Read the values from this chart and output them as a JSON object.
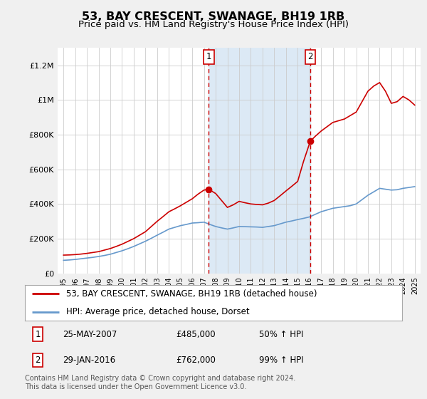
{
  "title": "53, BAY CRESCENT, SWANAGE, BH19 1RB",
  "subtitle": "Price paid vs. HM Land Registry's House Price Index (HPI)",
  "title_fontsize": 11.5,
  "subtitle_fontsize": 9.5,
  "ylim": [
    0,
    1300000
  ],
  "yticks": [
    0,
    200000,
    400000,
    600000,
    800000,
    1000000,
    1200000
  ],
  "ytick_labels": [
    "£0",
    "£200K",
    "£400K",
    "£600K",
    "£800K",
    "£1M",
    "£1.2M"
  ],
  "xlim_start": 1994.5,
  "xlim_end": 2025.5,
  "xtick_years": [
    1995,
    1996,
    1997,
    1998,
    1999,
    2000,
    2001,
    2002,
    2003,
    2004,
    2005,
    2006,
    2007,
    2008,
    2009,
    2010,
    2011,
    2012,
    2013,
    2014,
    2015,
    2016,
    2017,
    2018,
    2019,
    2020,
    2021,
    2022,
    2023,
    2024,
    2025
  ],
  "sale1_x": 2007.4,
  "sale1_y": 485000,
  "sale1_label": "1",
  "sale2_x": 2016.08,
  "sale2_y": 762000,
  "sale2_label": "2",
  "shade_color": "#dce9f5",
  "sale_line_color": "#cc0000",
  "legend_line1": "53, BAY CRESCENT, SWANAGE, BH19 1RB (detached house)",
  "legend_line2": "HPI: Average price, detached house, Dorset",
  "red_line_color": "#cc0000",
  "blue_line_color": "#6699cc",
  "marker_color": "#cc0000",
  "footnote": "Contains HM Land Registry data © Crown copyright and database right 2024.\nThis data is licensed under the Open Government Licence v3.0.",
  "hpi_years": [
    1995,
    1995.5,
    1996,
    1996.5,
    1997,
    1997.5,
    1998,
    1998.5,
    1999,
    1999.5,
    2000,
    2000.5,
    2001,
    2001.5,
    2002,
    2002.5,
    2003,
    2003.5,
    2004,
    2004.5,
    2005,
    2005.5,
    2006,
    2006.5,
    2007,
    2007.5,
    2008,
    2008.5,
    2009,
    2009.5,
    2010,
    2010.5,
    2011,
    2011.5,
    2012,
    2012.5,
    2013,
    2013.5,
    2014,
    2014.5,
    2015,
    2015.5,
    2016,
    2016.5,
    2017,
    2017.5,
    2018,
    2018.5,
    2019,
    2019.5,
    2020,
    2020.5,
    2021,
    2021.5,
    2022,
    2022.5,
    2023,
    2023.5,
    2024,
    2024.5,
    2025
  ],
  "hpi_values": [
    75000,
    77000,
    80000,
    84000,
    88000,
    92000,
    97000,
    103000,
    110000,
    120000,
    130000,
    142000,
    155000,
    170000,
    185000,
    202000,
    220000,
    237000,
    255000,
    265000,
    275000,
    282000,
    290000,
    292000,
    295000,
    282000,
    270000,
    262000,
    255000,
    262000,
    270000,
    269000,
    268000,
    267000,
    265000,
    270000,
    275000,
    285000,
    295000,
    302000,
    310000,
    317000,
    325000,
    340000,
    355000,
    365000,
    375000,
    380000,
    385000,
    390000,
    400000,
    425000,
    450000,
    470000,
    490000,
    485000,
    480000,
    482000,
    490000,
    495000,
    500000
  ],
  "prop_years": [
    1995,
    1995.5,
    1996,
    1996.5,
    1997,
    1997.5,
    1998,
    1998.5,
    1999,
    1999.5,
    2000,
    2000.5,
    2001,
    2001.5,
    2002,
    2002.5,
    2003,
    2003.5,
    2004,
    2004.5,
    2005,
    2005.5,
    2006,
    2006.5,
    2007,
    2007.4,
    2008,
    2008.5,
    2009,
    2009.5,
    2010,
    2010.5,
    2011,
    2011.5,
    2012,
    2012.5,
    2013,
    2013.5,
    2014,
    2014.5,
    2015,
    2015.5,
    2016.08,
    2016.5,
    2017,
    2017.5,
    2018,
    2018.5,
    2019,
    2019.5,
    2020,
    2020.5,
    2021,
    2021.5,
    2022,
    2022.5,
    2023,
    2023.5,
    2024,
    2024.5,
    2025
  ],
  "prop_values": [
    105000,
    106000,
    108000,
    111000,
    115000,
    120000,
    125000,
    134000,
    143000,
    155000,
    168000,
    184000,
    200000,
    220000,
    240000,
    270000,
    300000,
    327000,
    355000,
    372000,
    390000,
    410000,
    430000,
    457000,
    480000,
    485000,
    460000,
    420000,
    380000,
    395000,
    415000,
    407000,
    400000,
    397000,
    395000,
    405000,
    420000,
    447000,
    475000,
    502000,
    530000,
    645000,
    762000,
    790000,
    820000,
    845000,
    870000,
    880000,
    890000,
    910000,
    930000,
    990000,
    1050000,
    1080000,
    1100000,
    1050000,
    980000,
    990000,
    1020000,
    1000000,
    970000
  ],
  "background_color": "#f0f0f0",
  "plot_bg_color": "#ffffff",
  "grid_color": "#cccccc"
}
